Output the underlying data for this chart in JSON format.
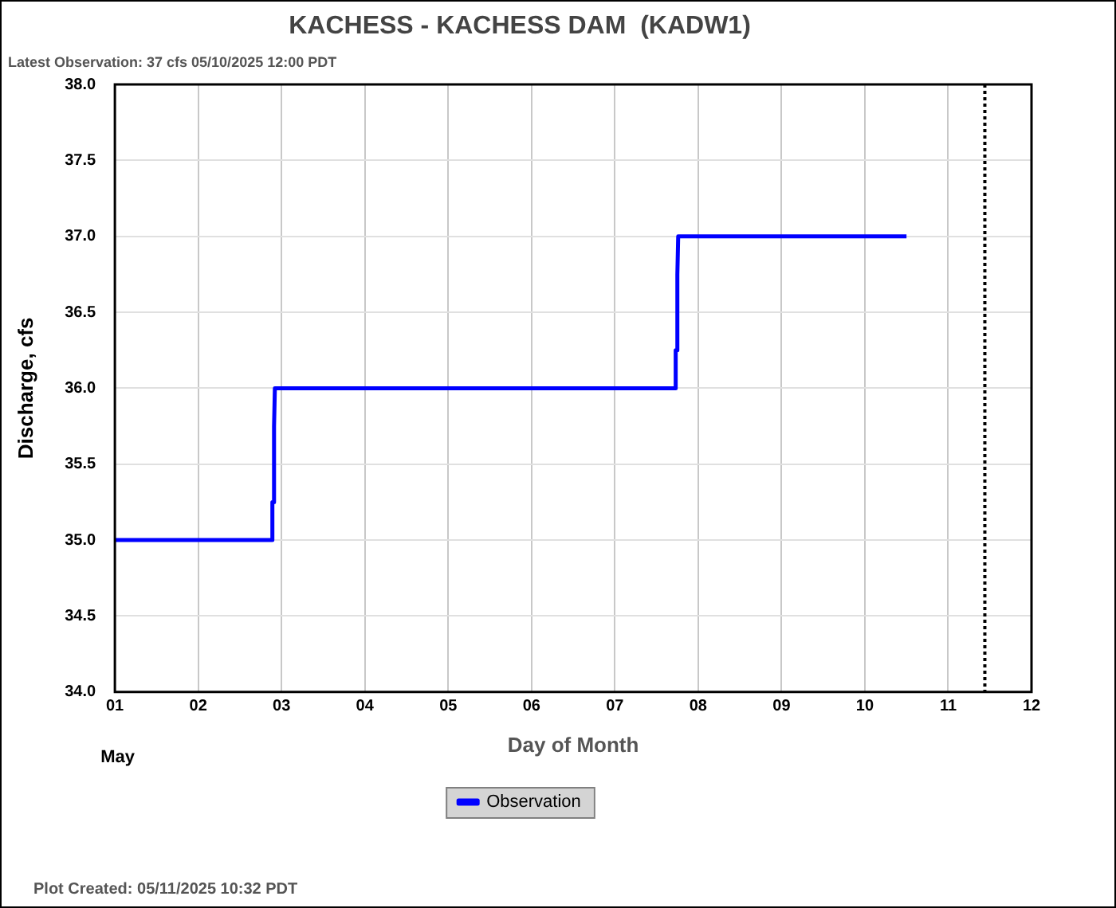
{
  "chart_data": {
    "type": "line",
    "title": "KACHESS - KACHESS DAM  (KADW1)",
    "subtitle": "Latest Observation: 37 cfs 05/10/2025 12:00 PDT",
    "xlabel": "Day of Month",
    "ylabel": "Discharge, cfs",
    "x": [
      1,
      2.88,
      2.89,
      2.9,
      2.91,
      2.92,
      7.72,
      7.73,
      7.74,
      7.75,
      7.76,
      10.5
    ],
    "series": [
      {
        "name": "Observation",
        "color": "#0000ff",
        "values": [
          35,
          35,
          35.25,
          35.25,
          35.75,
          36,
          36,
          36.25,
          36.25,
          36.75,
          37,
          37
        ]
      }
    ],
    "xlim": [
      1,
      12
    ],
    "xticks": [
      {
        "value": 1,
        "label": "01"
      },
      {
        "value": 2,
        "label": "02"
      },
      {
        "value": 3,
        "label": "03"
      },
      {
        "value": 4,
        "label": "04"
      },
      {
        "value": 5,
        "label": "05"
      },
      {
        "value": 6,
        "label": "06"
      },
      {
        "value": 7,
        "label": "07"
      },
      {
        "value": 8,
        "label": "08"
      },
      {
        "value": 9,
        "label": "09"
      },
      {
        "value": 10,
        "label": "10"
      },
      {
        "value": 11,
        "label": "11"
      },
      {
        "value": 12,
        "label": "12"
      }
    ],
    "ylim": [
      34,
      38
    ],
    "yticks": [
      {
        "value": 34,
        "label": "34.0"
      },
      {
        "value": 34.5,
        "label": "34.5"
      },
      {
        "value": 35,
        "label": "35.0"
      },
      {
        "value": 35.5,
        "label": "35.5"
      },
      {
        "value": 36,
        "label": "36.0"
      },
      {
        "value": 36.5,
        "label": "36.5"
      },
      {
        "value": 37,
        "label": "37.0"
      },
      {
        "value": 37.5,
        "label": "37.5"
      },
      {
        "value": 38,
        "label": "38.0"
      }
    ],
    "ref_lines": [
      {
        "axis": "x",
        "value": 11.44,
        "color": "#000000",
        "line_style": "dotted"
      }
    ],
    "annotations": [
      "May",
      "Plot Created: 05/11/2025 10:32 PDT"
    ],
    "grid": true,
    "legend": "bottom",
    "marker": "none",
    "line_style": "solid"
  }
}
